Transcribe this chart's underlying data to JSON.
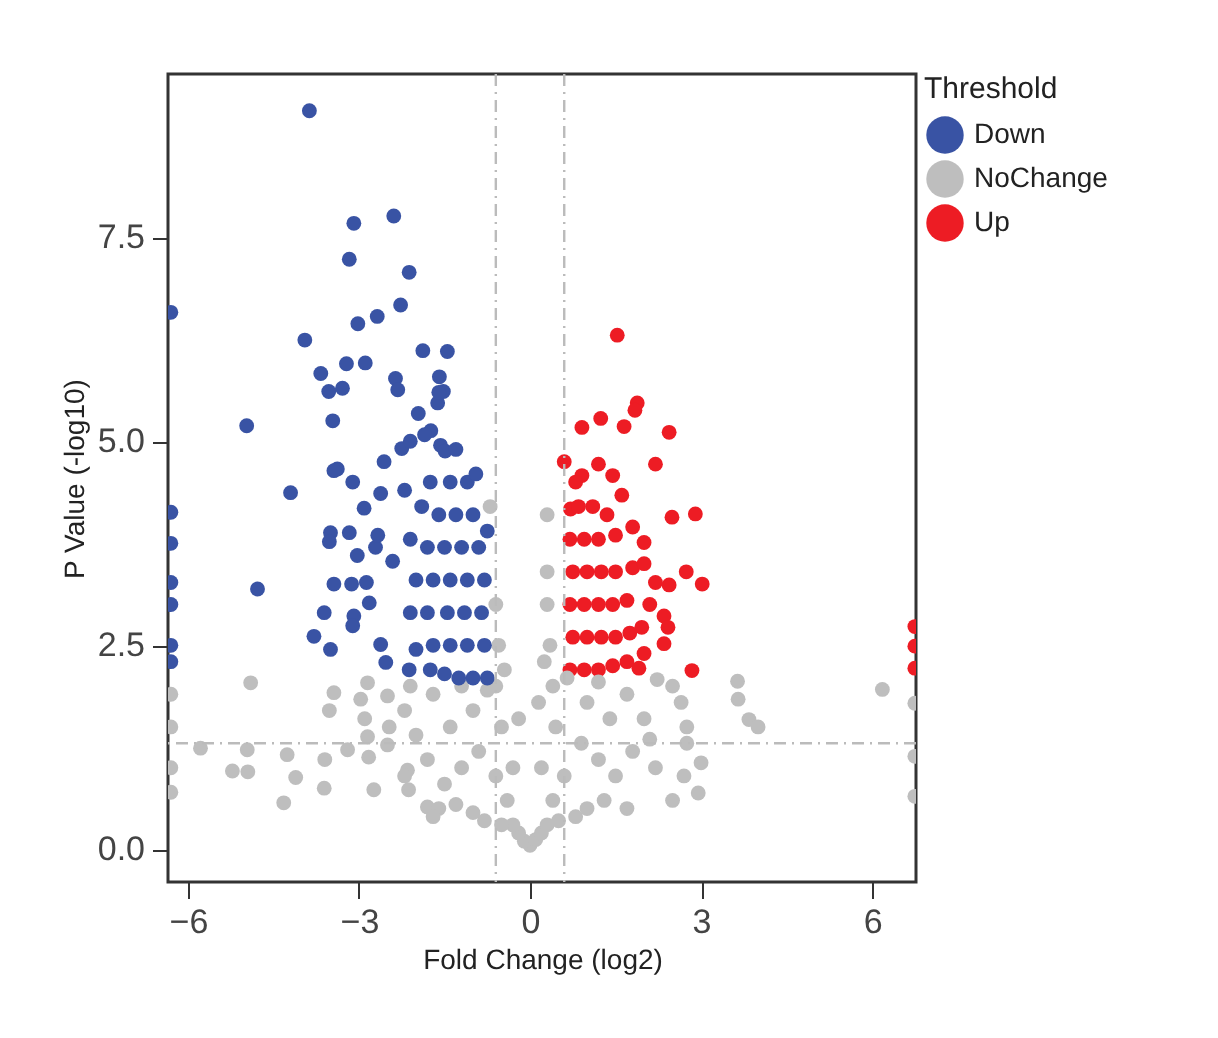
{
  "chart_data": {
    "type": "scatter",
    "xlabel": "Fold Change (log2)",
    "ylabel": "P Value (-log10)",
    "legend_title": "Threshold",
    "legend": "top right",
    "marker": "circle",
    "grid": false,
    "xlim": [
      -6.35,
      6.77
    ],
    "ylim": [
      -0.4,
      9.5
    ],
    "xticks": [
      -6,
      -3,
      0,
      3,
      6
    ],
    "yticks": [
      {
        "value": 0,
        "label": "0.0"
      },
      2.5,
      {
        "value": 5,
        "label": "5.0"
      },
      7.5
    ],
    "ref_lines": [
      {
        "axis": "x",
        "value": -0.6,
        "color": "#bbbbbb",
        "line_style": "dashed"
      },
      {
        "axis": "x",
        "value": 0.6,
        "color": "#bbbbbb",
        "line_style": "dashed"
      },
      {
        "axis": "y",
        "value": 1.3,
        "color": "#bbbbbb",
        "line_style": "dashed"
      }
    ],
    "series": [
      {
        "name": "Down",
        "color": "#3953a4",
        "x": [
          -3.87,
          -3.09,
          -2.39,
          -3.17,
          -2.12,
          -2.27,
          -2.68,
          -3.02,
          -3.95,
          -1.88,
          -1.45,
          -3.22,
          -2.89,
          -3.67,
          -3.53,
          -3.29,
          -2.36,
          -2.32,
          -1.59,
          -1.52,
          -1.62,
          -1.96,
          -4.97,
          -3.46,
          -1.74,
          -1.85,
          -1.57,
          -2.25,
          -1.49,
          -2.56,
          -3.38,
          -3.44,
          -4.2,
          -3.11,
          -2.62,
          -2.91,
          -3.5,
          -3.17,
          -3.52,
          -3.03,
          -2.71,
          -2.67,
          -2.41,
          -4.78,
          -3.44,
          -3.13,
          -2.87,
          -2.82,
          -3.61,
          -3.09,
          -3.11,
          -3.79,
          -3.5,
          -2.62,
          -2.53,
          -2.12,
          -0.75,
          -1.0,
          -1.25,
          -1.5,
          -1.75,
          -0.8,
          -1.1,
          -1.4,
          -1.7,
          -2.0,
          -0.85,
          -1.15,
          -1.45,
          -1.8,
          -2.1,
          -0.8,
          -1.1,
          -1.4,
          -1.7,
          -2.0,
          -0.9,
          -1.2,
          -1.5,
          -1.8,
          -2.1,
          -1.0,
          -1.3,
          -1.6,
          -1.9,
          -1.1,
          -1.4,
          -1.75,
          -2.2,
          -0.75,
          -0.95,
          -1.3,
          -2.1,
          -1.6,
          -6.3,
          -6.3,
          -6.3,
          -6.3,
          -6.3,
          -6.3,
          -6.3
        ],
        "values": [
          9.05,
          7.67,
          7.76,
          7.23,
          7.07,
          6.67,
          6.53,
          6.44,
          6.24,
          6.11,
          6.1,
          5.95,
          5.96,
          5.83,
          5.61,
          5.65,
          5.77,
          5.63,
          5.79,
          5.61,
          5.47,
          5.34,
          5.19,
          5.25,
          5.13,
          5.08,
          4.95,
          4.91,
          4.88,
          4.75,
          4.66,
          4.64,
          4.37,
          4.5,
          4.36,
          4.18,
          3.88,
          3.88,
          3.77,
          3.6,
          3.7,
          3.85,
          3.53,
          3.19,
          3.25,
          3.25,
          3.27,
          3.02,
          2.9,
          2.86,
          2.74,
          2.61,
          2.45,
          2.51,
          2.29,
          2.2,
          2.1,
          2.1,
          2.1,
          2.15,
          2.2,
          2.5,
          2.5,
          2.5,
          2.5,
          2.45,
          2.9,
          2.9,
          2.9,
          2.9,
          2.9,
          3.3,
          3.3,
          3.3,
          3.3,
          3.3,
          3.7,
          3.7,
          3.7,
          3.7,
          3.8,
          4.1,
          4.1,
          4.1,
          4.2,
          4.5,
          4.5,
          4.5,
          4.4,
          3.9,
          4.6,
          4.9,
          5.0,
          5.6,
          6.58,
          4.13,
          3.75,
          3.27,
          3.0,
          2.5,
          2.3
        ]
      },
      {
        "name": "NoChange",
        "color": "#bebebe",
        "x": [
          -4.9,
          -5.78,
          -4.96,
          -5.22,
          -4.95,
          -4.32,
          -4.11,
          -4.26,
          -3.61,
          -3.6,
          -3.52,
          -3.44,
          -3.2,
          -2.97,
          -2.85,
          -2.9,
          -2.85,
          -2.83,
          -2.74,
          -2.5,
          -2.47,
          -2.5,
          -2.15,
          -2.13,
          -2.2,
          -2.1,
          -1.8,
          -1.6,
          3.64,
          3.65,
          3.84,
          4.0,
          6.18,
          2.23,
          2.5,
          2.65,
          2.75,
          2.75,
          3.0,
          2.95,
          2.5,
          2.7,
          2.1,
          0,
          -0.1,
          0.1,
          -0.2,
          0.2,
          -0.3,
          0.3,
          -0.5,
          0.5,
          -0.8,
          0.8,
          -1.0,
          1.0,
          -1.3,
          1.3,
          -0.4,
          0.4,
          -0.6,
          0.6,
          -1.5,
          1.5,
          -1.2,
          1.2,
          -0.9,
          0.9,
          -1.8,
          1.8,
          -0.5,
          0.45,
          -1.4,
          1.4,
          -1.0,
          1.0,
          -1.7,
          1.7,
          -0.6,
          0.4,
          -1.2,
          1.2,
          -0.55,
          0.35,
          -0.6,
          0.3,
          0.3,
          0.3,
          -0.7,
          -2.0,
          2.0,
          -2.2,
          2.2,
          -1.7,
          1.7,
          0.65,
          -0.75,
          -0.3,
          0.2,
          -0.2,
          0.15,
          -0.45,
          0.25,
          -6.3,
          -6.3,
          -6.3,
          -6.3,
          6.75,
          6.75,
          6.75
        ],
        "values": [
          2.04,
          1.24,
          1.22,
          0.96,
          0.95,
          0.57,
          0.88,
          1.16,
          0.75,
          1.1,
          1.7,
          1.92,
          1.22,
          1.84,
          2.04,
          1.6,
          1.38,
          1.13,
          0.73,
          1.88,
          1.5,
          1.28,
          0.97,
          0.73,
          1.7,
          2.0,
          0.52,
          0.5,
          2.06,
          1.84,
          1.59,
          1.5,
          1.96,
          2.08,
          2.0,
          1.8,
          1.5,
          1.3,
          1.06,
          0.69,
          0.6,
          0.9,
          1.35,
          0.05,
          0.1,
          0.12,
          0.2,
          0.2,
          0.3,
          0.3,
          0.3,
          0.35,
          0.35,
          0.4,
          0.45,
          0.5,
          0.55,
          0.6,
          0.6,
          0.6,
          0.9,
          0.9,
          0.8,
          0.9,
          1.0,
          1.1,
          1.2,
          1.3,
          1.1,
          1.2,
          1.5,
          1.5,
          1.5,
          1.6,
          1.7,
          1.8,
          1.9,
          1.9,
          2.0,
          2.0,
          2.0,
          2.05,
          2.5,
          2.5,
          3.0,
          3.0,
          3.4,
          4.1,
          4.2,
          1.4,
          1.6,
          0.9,
          1.0,
          0.4,
          0.5,
          2.1,
          1.95,
          1.0,
          1.0,
          1.6,
          1.8,
          2.2,
          2.3,
          1.5,
          1.0,
          0.7,
          1.9,
          1.79,
          1.14,
          0.65
        ]
      },
      {
        "name": "Up",
        "color": "#ed1c24",
        "x": [
          1.53,
          1.88,
          1.84,
          0.91,
          1.24,
          1.65,
          2.44,
          0.6,
          1.2,
          1.45,
          0.91,
          2.2,
          1.61,
          2.49,
          2.9,
          1.8,
          2.0,
          0.71,
          2.74,
          3.02,
          2.44,
          2.2,
          2.35,
          2.42,
          1.96,
          2.35,
          2.84,
          1.91,
          0.7,
          0.95,
          1.2,
          1.45,
          1.7,
          0.75,
          1.0,
          1.25,
          1.5,
          1.75,
          0.7,
          0.95,
          1.2,
          1.45,
          1.7,
          0.75,
          1.0,
          1.25,
          1.5,
          1.8,
          0.7,
          0.95,
          1.2,
          1.5,
          0.85,
          1.1,
          1.35,
          0.8,
          2.0,
          2.1,
          2.0,
          6.75,
          6.75,
          6.75
        ],
        "values": [
          6.3,
          5.47,
          5.38,
          5.17,
          5.28,
          5.18,
          5.11,
          4.75,
          4.72,
          4.58,
          4.58,
          4.72,
          4.34,
          4.07,
          4.11,
          3.95,
          3.76,
          4.17,
          3.4,
          3.25,
          3.24,
          3.27,
          2.86,
          2.72,
          2.72,
          2.52,
          2.19,
          2.22,
          2.2,
          2.2,
          2.2,
          2.25,
          2.3,
          2.6,
          2.6,
          2.6,
          2.6,
          2.65,
          3.0,
          3.0,
          3.0,
          3.0,
          3.05,
          3.4,
          3.4,
          3.4,
          3.4,
          3.45,
          3.8,
          3.8,
          3.8,
          3.85,
          4.2,
          4.2,
          4.1,
          4.5,
          3.5,
          3.0,
          2.4,
          2.73,
          2.49,
          2.22
        ]
      }
    ]
  }
}
